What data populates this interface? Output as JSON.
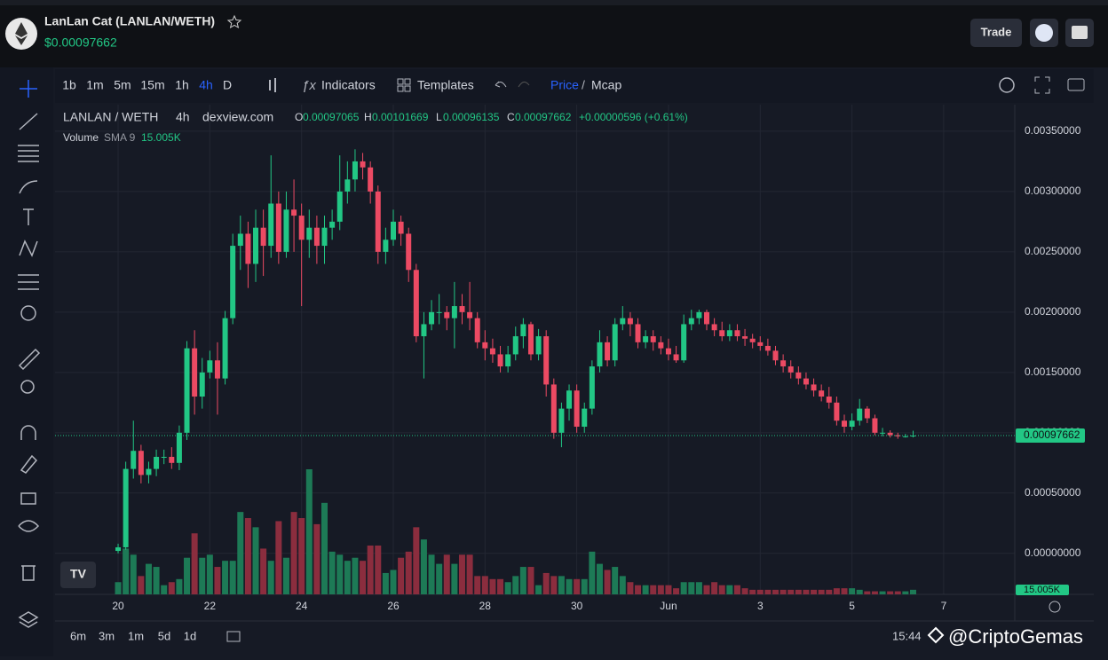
{
  "header": {
    "title": "LanLan Cat (LANLAN/WETH)",
    "price": "$0.00097662",
    "trade": "Trade"
  },
  "toolbar": {
    "intervals": [
      "1b",
      "1m",
      "5m",
      "15m",
      "1h",
      "4h",
      "D"
    ],
    "indicators": "Indicators",
    "templates": "Templates",
    "price": "Price",
    "slash": "/",
    "mcap": "Mcap"
  },
  "legend": {
    "pair": "LANLAN / WETH",
    "interval": "4h",
    "source": "dexview.com",
    "o_label": "O",
    "o": 0.00097065,
    "h_label": "H",
    "h": 0.00101669,
    "l_label": "L",
    "l": 0.00096135,
    "c_label": "C",
    "c": 0.00097662,
    "change": "+0.00000596 (+0.61%)",
    "volume": "Volume",
    "sma": "SMA 9",
    "sma_value": "15.005K"
  },
  "bottom": {
    "ranges": [
      "6m",
      "3m",
      "1m",
      "5d",
      "1d"
    ],
    "time": "15:44",
    "watermark": "@CriptoGemas"
  },
  "chart_data": {
    "type": "candlestick",
    "up_color": "#22c785",
    "down_color": "#ec4a63",
    "up_volume_color": "#1d7a56",
    "down_volume_color": "#8b2d3e",
    "open": [
      2e-05,
      5e-05,
      0.0007,
      0.00085,
      0.00065,
      0.0007,
      0.0008,
      0.0008,
      0.00075,
      0.001,
      0.0017,
      0.0013,
      0.0015,
      0.0016,
      0.00145,
      0.00195,
      0.00255,
      0.00265,
      0.0024,
      0.0027,
      0.00255,
      0.0029,
      0.0025,
      0.00285,
      0.0028,
      0.0026,
      0.0027,
      0.00255,
      0.0027,
      0.00275,
      0.003,
      0.0031,
      0.00325,
      0.0032,
      0.003,
      0.0025,
      0.0026,
      0.00275,
      0.00265,
      0.00235,
      0.0018,
      0.0019,
      0.002,
      0.002,
      0.00195,
      0.00205,
      0.002,
      0.00195,
      0.00175,
      0.0017,
      0.00165,
      0.00155,
      0.00165,
      0.0018,
      0.0019,
      0.00165,
      0.0018,
      0.0014,
      0.001,
      0.0012,
      0.00135,
      0.00105,
      0.0012,
      0.00155,
      0.00175,
      0.0016,
      0.0019,
      0.00195,
      0.0019,
      0.00175,
      0.0018,
      0.00175,
      0.0017,
      0.00165,
      0.0016,
      0.0019,
      0.00195,
      0.002,
      0.0019,
      0.00185,
      0.0018,
      0.00185,
      0.0018,
      0.00178,
      0.00175,
      0.00172,
      0.00168,
      0.0016,
      0.00155,
      0.0015,
      0.00145,
      0.0014,
      0.00135,
      0.0013,
      0.00125,
      0.0011,
      0.00105,
      0.0011,
      0.0012,
      0.00112,
      0.001,
      0.001,
      0.00098,
      0.00097,
      0.00097065
    ],
    "high": [
      8e-05,
      0.00076,
      0.0011,
      0.0009,
      0.00076,
      0.00086,
      0.00086,
      0.00088,
      0.00106,
      0.00176,
      0.00185,
      0.00162,
      0.00168,
      0.00175,
      0.00201,
      0.00265,
      0.0028,
      0.00275,
      0.00285,
      0.00285,
      0.0033,
      0.003,
      0.003,
      0.0031,
      0.0029,
      0.00285,
      0.0028,
      0.0028,
      0.00285,
      0.0033,
      0.00325,
      0.00335,
      0.00332,
      0.00325,
      0.00305,
      0.0027,
      0.00285,
      0.0028,
      0.0027,
      0.0024,
      0.002,
      0.0021,
      0.00215,
      0.00205,
      0.00225,
      0.00215,
      0.00225,
      0.002,
      0.00185,
      0.00178,
      0.00172,
      0.00172,
      0.00188,
      0.00195,
      0.00192,
      0.00186,
      0.00185,
      0.00145,
      0.00125,
      0.0014,
      0.0014,
      0.00125,
      0.0016,
      0.00185,
      0.0018,
      0.00195,
      0.00205,
      0.002,
      0.00195,
      0.00185,
      0.00185,
      0.0018,
      0.00178,
      0.00172,
      0.00198,
      0.00202,
      0.00202,
      0.00202,
      0.00195,
      0.00192,
      0.0019,
      0.0019,
      0.00186,
      0.00182,
      0.0018,
      0.00178,
      0.00172,
      0.00165,
      0.0016,
      0.00155,
      0.0015,
      0.00145,
      0.0014,
      0.00138,
      0.0013,
      0.00115,
      0.00116,
      0.00128,
      0.00122,
      0.00115,
      0.00104,
      0.00102,
      0.001,
      0.00099,
      0.00101669
    ],
    "low": [
      0,
      3e-05,
      0.00062,
      0.00058,
      0.00058,
      0.00064,
      0.00074,
      0.0007,
      0.00069,
      0.00094,
      0.00115,
      0.0012,
      0.00145,
      0.00115,
      0.0014,
      0.0019,
      0.00235,
      0.0022,
      0.00225,
      0.0023,
      0.00245,
      0.0024,
      0.00245,
      0.0025,
      0.00205,
      0.00245,
      0.0024,
      0.0024,
      0.0026,
      0.00268,
      0.0029,
      0.003,
      0.0031,
      0.0029,
      0.0024,
      0.0024,
      0.00255,
      0.00255,
      0.00225,
      0.00175,
      0.00145,
      0.00185,
      0.0019,
      0.00185,
      0.0017,
      0.0019,
      0.00185,
      0.0017,
      0.0016,
      0.00158,
      0.0015,
      0.0015,
      0.0016,
      0.0017,
      0.0016,
      0.0016,
      0.0013,
      0.00095,
      0.00088,
      0.0011,
      0.001,
      0.001,
      0.00115,
      0.0015,
      0.00155,
      0.00155,
      0.00185,
      0.0018,
      0.0017,
      0.0017,
      0.00168,
      0.00165,
      0.0016,
      0.00158,
      0.00158,
      0.00185,
      0.0019,
      0.00185,
      0.0018,
      0.00176,
      0.00176,
      0.00176,
      0.00172,
      0.0017,
      0.00168,
      0.00164,
      0.00156,
      0.0015,
      0.00145,
      0.0014,
      0.00136,
      0.0013,
      0.00126,
      0.0012,
      0.00106,
      0.001,
      0.00102,
      0.00106,
      0.00108,
      0.00098,
      0.00097,
      0.00096,
      0.00095,
      0.00096,
      0.00096135
    ],
    "close": [
      5e-05,
      0.0007,
      0.00085,
      0.00065,
      0.0007,
      0.0008,
      0.0008,
      0.00075,
      0.001,
      0.0017,
      0.0013,
      0.0015,
      0.0016,
      0.00145,
      0.00195,
      0.00255,
      0.00265,
      0.0024,
      0.0027,
      0.00255,
      0.0029,
      0.0025,
      0.00285,
      0.0028,
      0.0026,
      0.0027,
      0.00255,
      0.0027,
      0.00275,
      0.003,
      0.0031,
      0.00325,
      0.0032,
      0.003,
      0.0025,
      0.0026,
      0.00275,
      0.00265,
      0.00235,
      0.0018,
      0.0019,
      0.002,
      0.002,
      0.00195,
      0.00205,
      0.002,
      0.00195,
      0.00175,
      0.0017,
      0.00165,
      0.00155,
      0.00165,
      0.0018,
      0.0019,
      0.00165,
      0.0018,
      0.0014,
      0.001,
      0.0012,
      0.00135,
      0.00105,
      0.0012,
      0.00155,
      0.00175,
      0.0016,
      0.0019,
      0.00195,
      0.0019,
      0.00175,
      0.0018,
      0.00175,
      0.0017,
      0.00165,
      0.0016,
      0.0019,
      0.00195,
      0.002,
      0.0019,
      0.00185,
      0.0018,
      0.00185,
      0.0018,
      0.00178,
      0.00175,
      0.00172,
      0.00168,
      0.0016,
      0.00155,
      0.0015,
      0.00145,
      0.0014,
      0.00135,
      0.0013,
      0.00125,
      0.0011,
      0.00105,
      0.0011,
      0.0012,
      0.00112,
      0.001,
      0.001,
      0.00098,
      0.00097,
      0.00097065,
      0.00097662
    ],
    "volume": [
      40000,
      150000,
      130000,
      60000,
      100000,
      90000,
      30000,
      40000,
      50000,
      120000,
      200000,
      120000,
      130000,
      90000,
      110000,
      110000,
      270000,
      250000,
      220000,
      150000,
      110000,
      240000,
      120000,
      270000,
      250000,
      410000,
      230000,
      300000,
      140000,
      130000,
      110000,
      120000,
      110000,
      160000,
      160000,
      70000,
      80000,
      120000,
      140000,
      220000,
      180000,
      130000,
      100000,
      130000,
      100000,
      130000,
      130000,
      60000,
      60000,
      50000,
      50000,
      40000,
      60000,
      90000,
      90000,
      30000,
      70000,
      60000,
      60000,
      50000,
      50000,
      50000,
      140000,
      100000,
      80000,
      90000,
      60000,
      40000,
      30000,
      30000,
      30000,
      30000,
      30000,
      20000,
      40000,
      40000,
      40000,
      30000,
      40000,
      30000,
      30000,
      30000,
      20000,
      15000,
      15000,
      15000,
      15000,
      15000,
      15000,
      15000,
      15000,
      15000,
      15000,
      15000,
      20000,
      20000,
      20000,
      15000,
      10000,
      10000,
      10000,
      10000,
      10000,
      10000,
      15000
    ],
    "xlim": [
      -8.25,
      117.3
    ],
    "xticks": [
      {
        "value": 0,
        "label": "20"
      },
      {
        "value": 12,
        "label": "22"
      },
      {
        "value": 24,
        "label": "24"
      },
      {
        "value": 36,
        "label": "26"
      },
      {
        "value": 48,
        "label": "28"
      },
      {
        "value": 60,
        "label": "30"
      },
      {
        "value": 72,
        "label": "Jun"
      },
      {
        "value": 84,
        "label": "3"
      },
      {
        "value": 96,
        "label": "5"
      },
      {
        "value": 108,
        "label": "7"
      }
    ],
    "ylim": [
      -0.00034,
      0.00372
    ],
    "yticks": [
      {
        "value": 0,
        "label": "0.00000000"
      },
      {
        "value": 0.0005,
        "label": "0.00050000"
      },
      {
        "value": 0.001,
        "label": "0.00100000"
      },
      {
        "value": 0.0015,
        "label": "0.00150000"
      },
      {
        "value": 0.002,
        "label": "0.00200000"
      },
      {
        "value": 0.0025,
        "label": "0.00250000"
      },
      {
        "value": 0.003,
        "label": "0.00300000"
      },
      {
        "value": 0.0035,
        "label": "0.00350000"
      }
    ],
    "grid": true,
    "last_price": 0.00097662
  }
}
